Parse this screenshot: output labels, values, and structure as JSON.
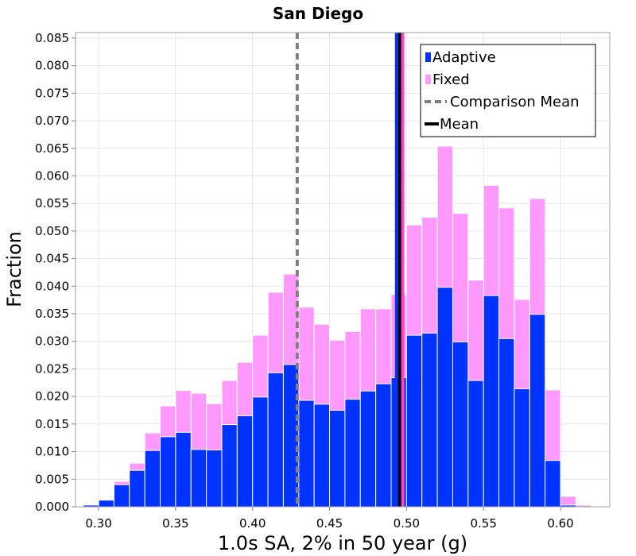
{
  "chart_data": {
    "type": "bar",
    "title": "San Diego",
    "xlabel": "1.0s SA, 2% in 50 year (g)",
    "ylabel": "Fraction",
    "xlim": [
      0.285,
      0.632
    ],
    "ylim": [
      0.0,
      0.086
    ],
    "xticks": [
      "0.30",
      "0.35",
      "0.40",
      "0.45",
      "0.50",
      "0.55",
      "0.60"
    ],
    "yticks": [
      "0.000",
      "0.005",
      "0.010",
      "0.015",
      "0.020",
      "0.025",
      "0.030",
      "0.035",
      "0.040",
      "0.045",
      "0.050",
      "0.055",
      "0.060",
      "0.065",
      "0.070",
      "0.075",
      "0.080",
      "0.085"
    ],
    "grid": true,
    "legend_position": "top-right",
    "bin_width": 0.01,
    "bin_centers": [
      0.295,
      0.305,
      0.315,
      0.325,
      0.335,
      0.345,
      0.355,
      0.365,
      0.375,
      0.385,
      0.395,
      0.405,
      0.415,
      0.425,
      0.435,
      0.445,
      0.455,
      0.465,
      0.475,
      0.485,
      0.495,
      0.505,
      0.515,
      0.525,
      0.535,
      0.545,
      0.555,
      0.565,
      0.575,
      0.585,
      0.595,
      0.605,
      0.615
    ],
    "series": [
      {
        "name": "Fixed",
        "color": "#ff99ff",
        "values": [
          0.0003,
          0.0012,
          0.0046,
          0.0079,
          0.0134,
          0.0183,
          0.0211,
          0.0206,
          0.0187,
          0.0229,
          0.0262,
          0.0311,
          0.0389,
          0.0422,
          0.0362,
          0.0331,
          0.0302,
          0.0318,
          0.0359,
          0.0359,
          0.0385,
          0.0511,
          0.0525,
          0.0654,
          0.0532,
          0.0411,
          0.0583,
          0.0542,
          0.0376,
          0.0559,
          0.0212,
          0.0019,
          0.0003
        ]
      },
      {
        "name": "Adaptive",
        "color": "#0033ff",
        "values": [
          0.0003,
          0.0012,
          0.004,
          0.0066,
          0.0102,
          0.0127,
          0.0135,
          0.0104,
          0.0103,
          0.0149,
          0.0165,
          0.0199,
          0.0243,
          0.0258,
          0.0193,
          0.0186,
          0.0175,
          0.0195,
          0.021,
          0.0223,
          0.0234,
          0.0311,
          0.0315,
          0.0398,
          0.0299,
          0.0229,
          0.0383,
          0.0305,
          0.0214,
          0.0349,
          0.0084,
          0.0003,
          0.0
        ]
      }
    ],
    "lines": [
      {
        "name": "Comparison Mean",
        "x": 0.429,
        "color": "#808080",
        "style": "dashed"
      },
      {
        "name": "Adaptive mean",
        "x": 0.4935,
        "color": "#0033ff",
        "style": "solid"
      },
      {
        "name": "Fixed mean",
        "x": 0.4975,
        "color": "#ff44cc",
        "style": "solid"
      },
      {
        "name": "Mean",
        "x": 0.4955,
        "color": "#000000",
        "style": "solid"
      }
    ],
    "legend": [
      {
        "label": "Adaptive",
        "kind": "box",
        "color": "#0033ff"
      },
      {
        "label": "Fixed",
        "kind": "box",
        "color": "#ff99ff"
      },
      {
        "label": "Comparison Mean",
        "kind": "dash",
        "color": "#808080"
      },
      {
        "label": "Mean",
        "kind": "line",
        "color": "#000000"
      }
    ]
  }
}
